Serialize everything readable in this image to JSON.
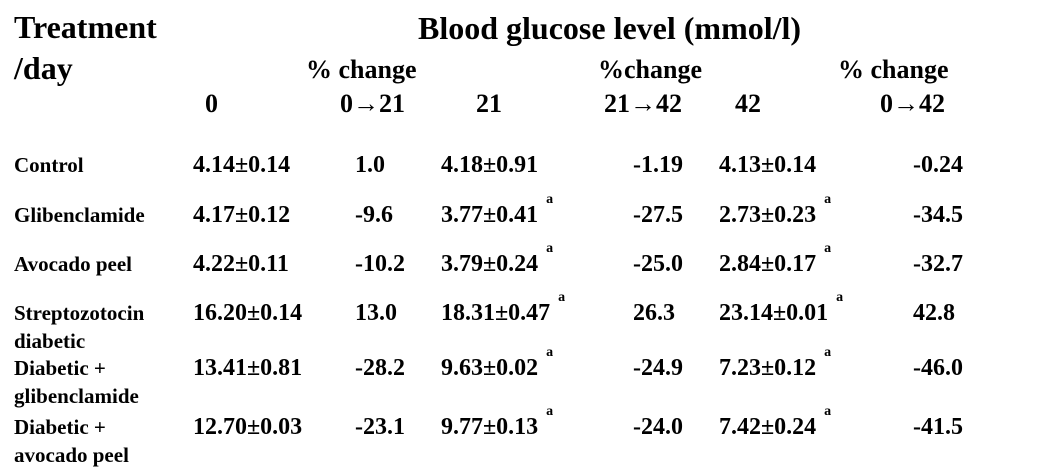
{
  "header": {
    "col_label_line1": "Treatment",
    "col_label_line2": "/day",
    "title": "Blood glucose level (mmol/l)",
    "pct_change_1": "% change",
    "pct_change_2": "%change",
    "pct_change_3": "% change",
    "day_0": "0",
    "range_0_21": "0→21",
    "day_21": "21",
    "range_21_42": "21→42",
    "day_42": "42",
    "range_0_42": "0→42"
  },
  "rows": [
    {
      "label_line1": "Control",
      "label_line2": "",
      "d0": "4.14±0.14",
      "pc0_21": "1.0",
      "d21": "4.18±0.91",
      "d21_note": "",
      "pc21_42": "-1.19",
      "d42": "4.13±0.14",
      "d42_note": "",
      "pc0_42": "-0.24"
    },
    {
      "label_line1": "Glibenclamide",
      "label_line2": "",
      "d0": "4.17±0.12",
      "pc0_21": "-9.6",
      "d21": "3.77±0.41",
      "d21_note": "a",
      "pc21_42": "-27.5",
      "d42": "2.73±0.23",
      "d42_note": "a",
      "pc0_42": "-34.5"
    },
    {
      "label_line1": "Avocado peel",
      "label_line2": "",
      "d0": "4.22±0.11",
      "pc0_21": "-10.2",
      "d21": "3.79±0.24",
      "d21_note": "a",
      "pc21_42": "-25.0",
      "d42": "2.84±0.17",
      "d42_note": "a",
      "pc0_42": "-32.7"
    },
    {
      "label_line1": "Streptozotocin",
      "label_line2": "diabetic",
      "d0": "16.20±0.14",
      "pc0_21": "13.0",
      "d21": "18.31±0.47",
      "d21_note": "a",
      "pc21_42": "26.3",
      "d42": "23.14±0.01",
      "d42_note": "a",
      "pc0_42": "42.8"
    },
    {
      "label_line1": "Diabetic +",
      "label_line2": "glibenclamide",
      "d0": "13.41±0.81",
      "pc0_21": "-28.2",
      "d21": "9.63±0.02",
      "d21_note": "a",
      "pc21_42": "-24.9",
      "d42": "7.23±0.12",
      "d42_note": "a",
      "pc0_42": "-46.0"
    },
    {
      "label_line1": "Diabetic +",
      "label_line2": "avocado peel",
      "d0": "12.70±0.03",
      "pc0_21": "-23.1",
      "d21": "9.77±0.13",
      "d21_note": "a",
      "pc21_42": "-24.0",
      "d42": "7.42±0.24",
      "d42_note": "a",
      "pc0_42": "-41.5"
    }
  ]
}
